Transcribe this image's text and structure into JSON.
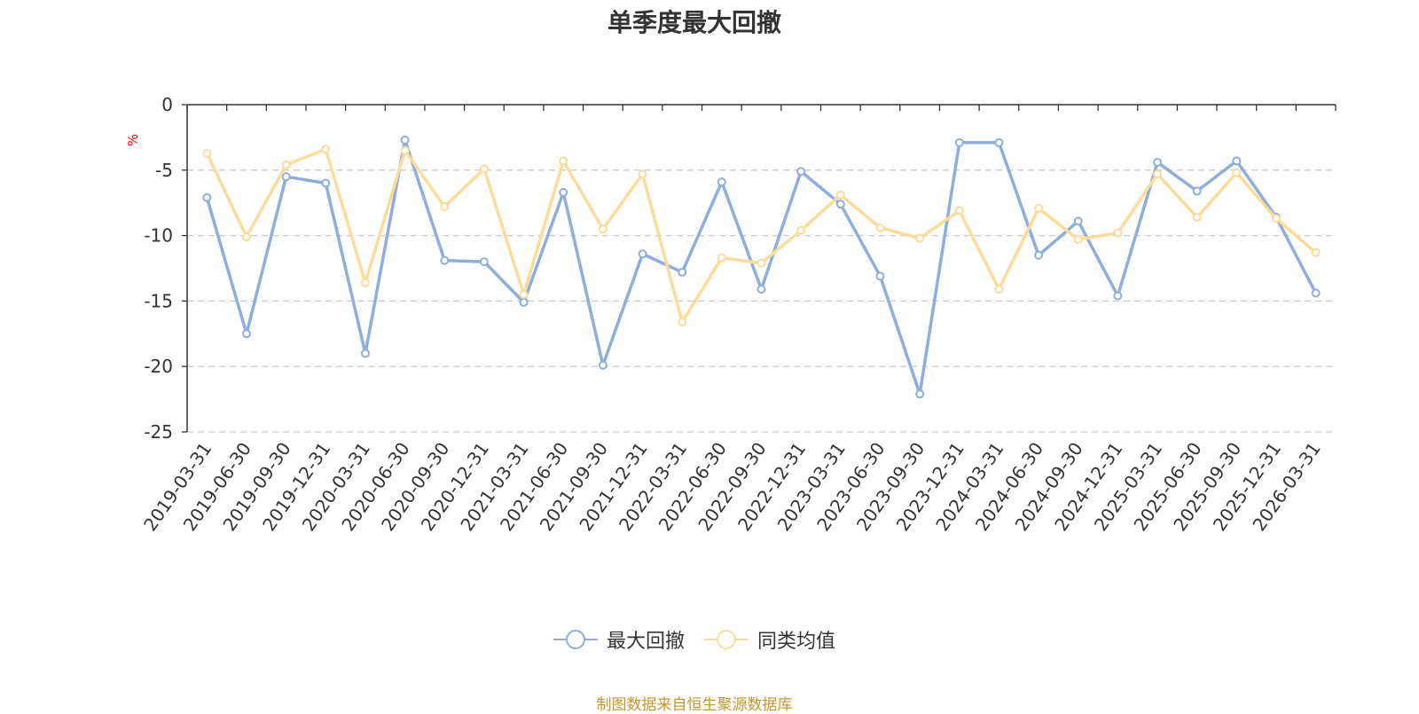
{
  "chart_data": {
    "type": "line",
    "title": "单季度最大回撤",
    "ylabel": "%",
    "ylim": [
      -25,
      0
    ],
    "yticks": [
      0,
      -5,
      -10,
      -15,
      -20,
      -25
    ],
    "grid": true,
    "legend_position": "bottom",
    "x": [
      "2019-03-31",
      "2019-06-30",
      "2019-09-30",
      "2019-12-31",
      "2020-03-31",
      "2020-06-30",
      "2020-09-30",
      "2020-12-31",
      "2021-03-31",
      "2021-06-30",
      "2021-09-30",
      "2021-12-31",
      "2022-03-31",
      "2022-06-30",
      "2022-09-30",
      "2022-12-31",
      "2023-03-31",
      "2023-06-30",
      "2023-09-30",
      "2023-12-31",
      "2024-03-31",
      "2024-06-30",
      "2024-09-30",
      "2024-12-31",
      "2025-03-31",
      "2025-06-30",
      "2025-09-30",
      "2025-12-31",
      "2026-03-31"
    ],
    "series": [
      {
        "name": "最大回撤",
        "color": "#8eaedc",
        "values": [
          -7.1,
          -17.5,
          -5.5,
          -6.0,
          -19.0,
          -2.7,
          -11.9,
          -12.0,
          -15.1,
          -6.7,
          -19.9,
          -11.4,
          -12.8,
          -5.9,
          -14.1,
          -5.1,
          -7.6,
          -13.1,
          -22.1,
          -2.9,
          -2.9,
          -11.5,
          -8.9,
          -14.6,
          -4.4,
          -6.6,
          -4.3,
          -8.6,
          -14.4
        ]
      },
      {
        "name": "同类均值",
        "color": "#fcdb9b",
        "values": [
          -3.7,
          -10.1,
          -4.6,
          -3.4,
          -13.6,
          -3.5,
          -7.8,
          -4.9,
          -14.5,
          -4.3,
          -9.5,
          -5.3,
          -16.6,
          -11.7,
          -12.1,
          -9.6,
          -6.9,
          -9.4,
          -10.2,
          -8.1,
          -14.1,
          -7.9,
          -10.3,
          -9.8,
          -5.3,
          -8.6,
          -5.2,
          -8.7,
          -11.3
        ]
      }
    ]
  },
  "source_note": "制图数据来自恒生聚源数据库"
}
